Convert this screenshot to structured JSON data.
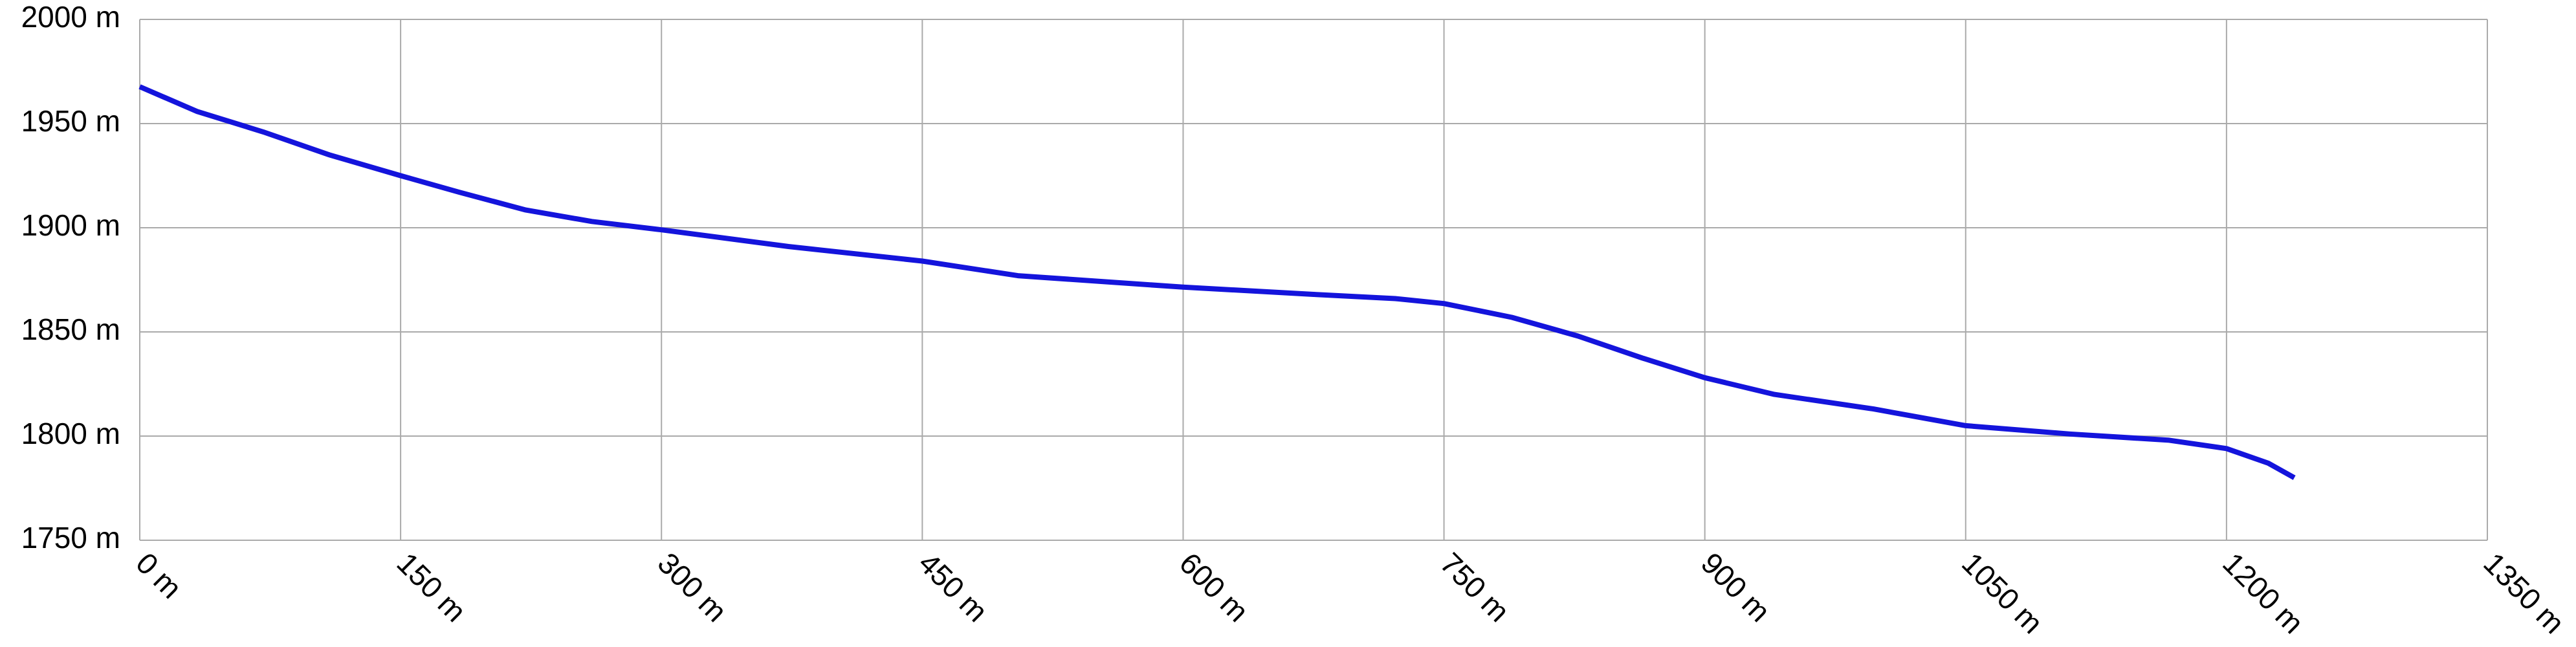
{
  "chart_data": {
    "type": "line",
    "x": [
      0,
      33,
      71,
      109,
      150,
      184,
      222,
      260,
      300,
      373,
      450,
      505,
      600,
      675,
      722,
      750,
      789,
      827,
      864,
      900,
      940,
      997,
      1050,
      1110,
      1167,
      1200,
      1224,
      1239
    ],
    "values": [
      1967.7,
      1955.8,
      1946,
      1935,
      1925,
      1917,
      1908.5,
      1903,
      1899,
      1891,
      1884,
      1877,
      1871.5,
      1868,
      1866,
      1863.6,
      1857,
      1848,
      1837.5,
      1828,
      1820,
      1813,
      1805,
      1801,
      1798,
      1794,
      1787,
      1780
    ],
    "color": "#1414dc",
    "xlim": [
      0,
      1350
    ],
    "ylim": [
      1750,
      2000
    ],
    "xticks": [
      {
        "value": 0,
        "label": "0 m"
      },
      {
        "value": 150,
        "label": "150 m"
      },
      {
        "value": 300,
        "label": "300 m"
      },
      {
        "value": 450,
        "label": "450 m"
      },
      {
        "value": 600,
        "label": "600 m"
      },
      {
        "value": 750,
        "label": "750 m"
      },
      {
        "value": 900,
        "label": "900 m"
      },
      {
        "value": 1050,
        "label": "1050 m"
      },
      {
        "value": 1200,
        "label": "1200 m"
      },
      {
        "value": 1350,
        "label": "1350 m"
      }
    ],
    "yticks": [
      {
        "value": 1750,
        "label": "1750 m"
      },
      {
        "value": 1800,
        "label": "1800 m"
      },
      {
        "value": 1850,
        "label": "1850 m"
      },
      {
        "value": 1900,
        "label": "1900 m"
      },
      {
        "value": 1950,
        "label": "1950 m"
      },
      {
        "value": 2000,
        "label": "2000 m"
      }
    ],
    "grid": true
  }
}
